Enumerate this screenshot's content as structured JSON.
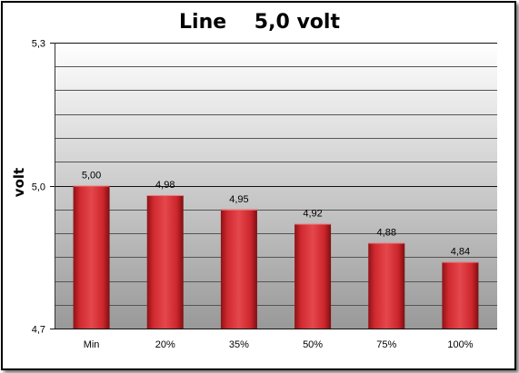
{
  "chart_data": {
    "type": "bar",
    "title": "Line    5,0 volt",
    "xlabel": "",
    "ylabel": "volt",
    "categories": [
      "Min",
      "20%",
      "35%",
      "50%",
      "75%",
      "100%"
    ],
    "values": [
      5.0,
      4.98,
      4.95,
      4.92,
      4.88,
      4.84
    ],
    "data_labels": [
      "5,00",
      "4,98",
      "4,95",
      "4,92",
      "4,88",
      "4,84"
    ],
    "ylim": [
      4.7,
      5.3
    ],
    "yticks": [
      4.7,
      5.0,
      5.3
    ],
    "ytick_labels": [
      "4,7",
      "5,0",
      "5,3"
    ],
    "minor_gridlines": [
      4.75,
      4.8,
      4.85,
      4.9,
      4.95,
      5.05,
      5.1,
      5.15,
      5.2,
      5.25
    ],
    "grid": true,
    "legend": "none",
    "bar_color": "#c8232a"
  }
}
